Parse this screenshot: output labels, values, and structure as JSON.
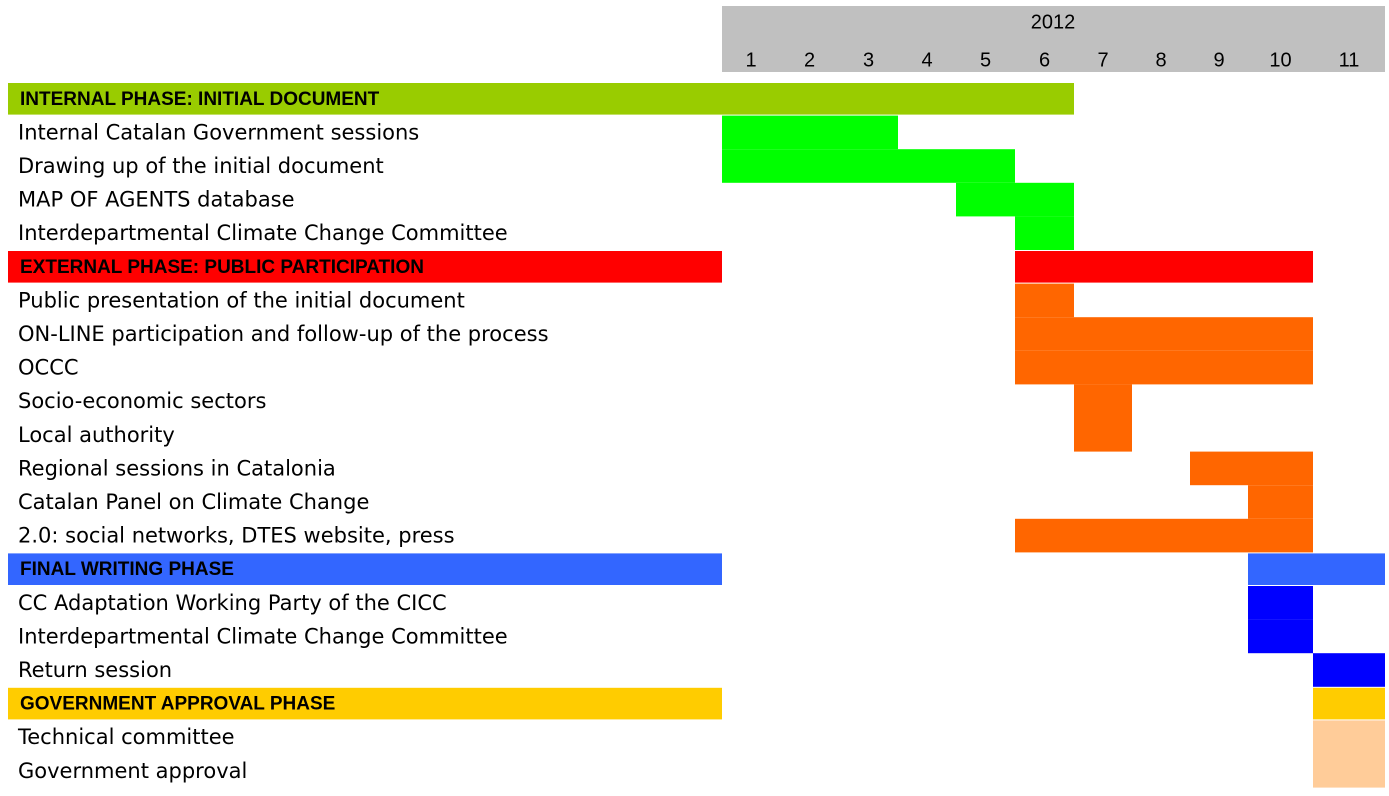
{
  "chart_data": {
    "type": "gantt",
    "year": "2012",
    "months": [
      1,
      2,
      3,
      4,
      5,
      6,
      7,
      8,
      9,
      10,
      11
    ],
    "phases": [
      {
        "name": "INTERNAL PHASE: INITIAL DOCUMENT",
        "color": "#99cc00",
        "bar_color": "#00ff00",
        "start": 1,
        "end": 6,
        "tasks": [
          {
            "name": "Internal Catalan Government sessions",
            "start": 1,
            "end": 3
          },
          {
            "name": "Drawing up of the initial document",
            "start": 1,
            "end": 5
          },
          {
            "name": "MAP OF AGENTS database",
            "start": 5,
            "end": 6
          },
          {
            "name": "Interdepartmental Climate Change Committee",
            "start": 6,
            "end": 6
          }
        ]
      },
      {
        "name": "EXTERNAL PHASE: PUBLIC PARTICIPATION",
        "color": "#ff0000",
        "bar_color": "#ff6600",
        "start": 6,
        "end": 10,
        "tasks": [
          {
            "name": "Public presentation of the initial document",
            "start": 6,
            "end": 6
          },
          {
            "name": "ON-LINE participation and follow-up of the process",
            "start": 6,
            "end": 10
          },
          {
            "name": "OCCC",
            "start": 6,
            "end": 10
          },
          {
            "name": "Socio-economic sectors",
            "start": 7,
            "end": 7
          },
          {
            "name": "Local authority",
            "start": 7,
            "end": 7
          },
          {
            "name": "Regional sessions in Catalonia",
            "start": 9,
            "end": 10
          },
          {
            "name": "Catalan Panel on Climate Change",
            "start": 10,
            "end": 10
          },
          {
            "name": "2.0: social networks, DTES website, press",
            "start": 6,
            "end": 10
          }
        ]
      },
      {
        "name": "FINAL WRITING PHASE",
        "color": "#3366ff",
        "bar_color": "#0000ff",
        "start": 10,
        "end": 11,
        "tasks": [
          {
            "name": "CC Adaptation Working Party of the CICC",
            "start": 10,
            "end": 10
          },
          {
            "name": "Interdepartmental Climate Change Committee",
            "start": 10,
            "end": 10
          },
          {
            "name": "Return session",
            "start": 11,
            "end": 11
          }
        ]
      },
      {
        "name": "GOVERNMENT APPROVAL PHASE",
        "color": "#ffcc00",
        "bar_color": "#ffcc99",
        "start": 11,
        "end": 11,
        "tasks": [
          {
            "name": "Technical committee",
            "start": 11,
            "end": 11
          },
          {
            "name": "Government approval",
            "start": 11,
            "end": 11
          }
        ]
      }
    ]
  }
}
